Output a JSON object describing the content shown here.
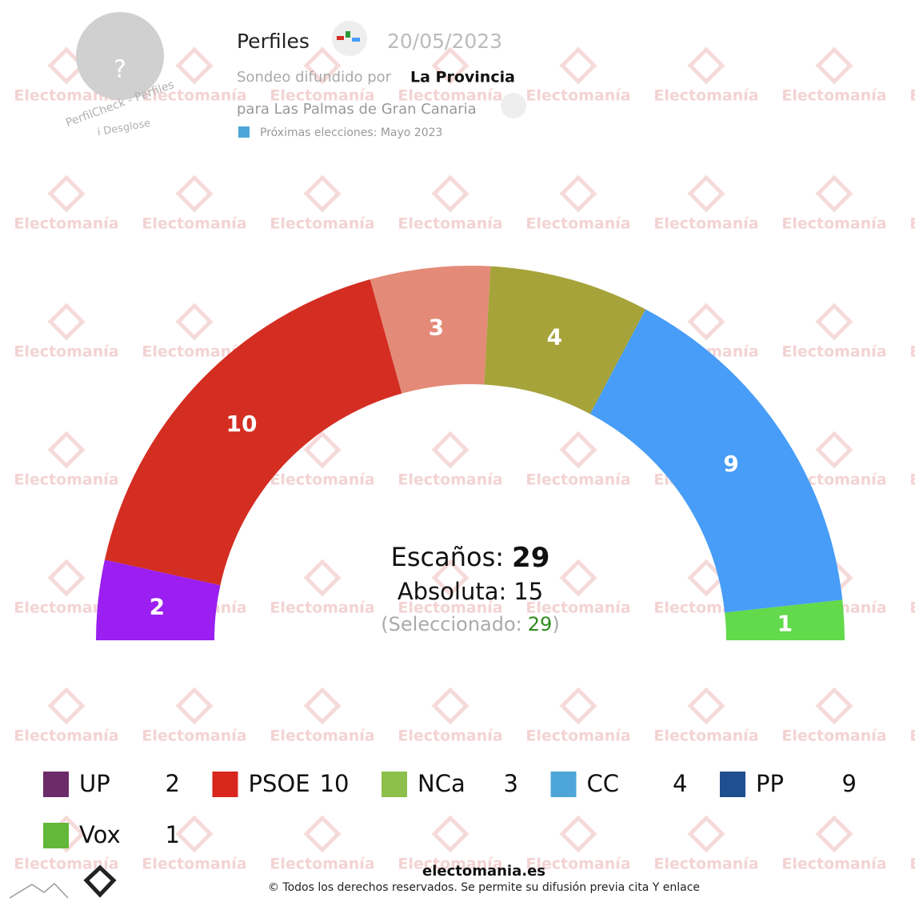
{
  "chart_data": {
    "type": "semicircle",
    "categories": [
      "UP",
      "PSOE",
      "NCa",
      "CC",
      "PP",
      "Vox"
    ],
    "values": [
      2,
      10,
      3,
      4,
      9,
      1
    ],
    "colors": [
      "#9a1ff0",
      "#d42d22",
      "#e48a78",
      "#a6a33a",
      "#479df7",
      "#63d94c"
    ],
    "legend_colors": [
      "#6b2c69",
      "#d8261c",
      "#8dc04a",
      "#4ea6d8",
      "#1f4f8f",
      "#63b83a"
    ],
    "seats_label": "Escaños:",
    "seats": 29,
    "majority_label": "Absoluta:",
    "majority": 15,
    "selected_prefix": "(Seleccionado:",
    "selected": 29,
    "selected_suffix": ")"
  },
  "header": {
    "avatar": "?",
    "profile_badge": "PerfilCheck - Perfiles",
    "breakdown": "i Desglose",
    "title": "Perfiles",
    "date": "20/05/2023",
    "source_prefix": "Sondeo difundido por",
    "source": "La Provincia",
    "scope": "para Las Palmas de Gran Canaria",
    "next_elections": "Próximas elecciones: Mayo 2023"
  },
  "watermark": "Electomanía",
  "footer": {
    "site": "electomania.es",
    "copyright": "© Todos los derechos reservados. Se permite su difusión previa cita Y enlace"
  }
}
